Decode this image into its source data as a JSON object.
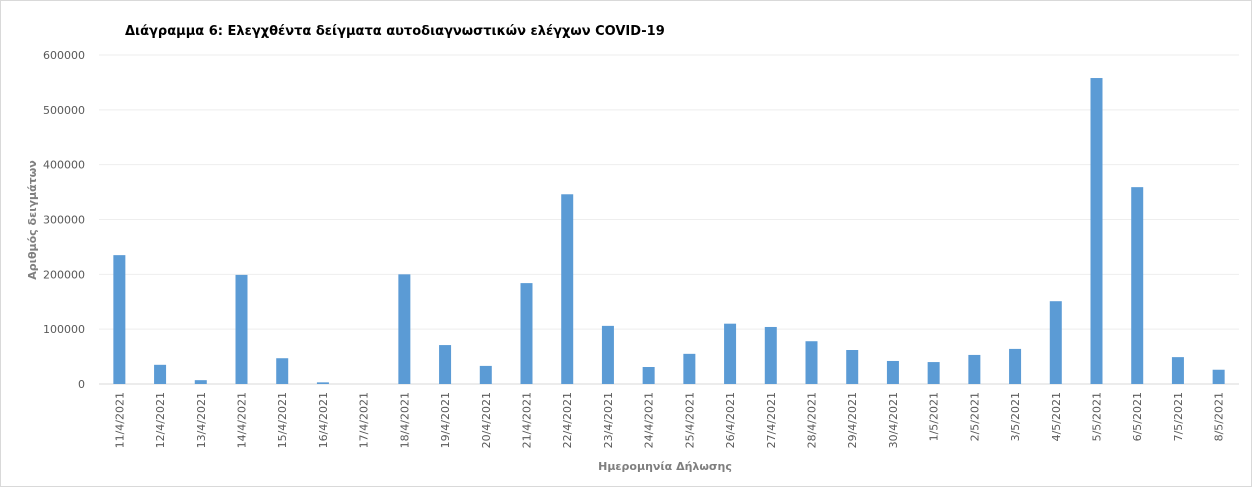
{
  "chart_data": {
    "type": "bar",
    "title": "Διάγραμμα 6: Ελεγχθέντα δείγματα αυτοδιαγνωστικών ελέγχων COVID-19",
    "x_label": "Ημερομηνία Δήλωσης",
    "y_label": "Αριθμός δειγμάτων",
    "categories": [
      "11/4/2021",
      "12/4/2021",
      "13/4/2021",
      "14/4/2021",
      "15/4/2021",
      "16/4/2021",
      "17/4/2021",
      "18/4/2021",
      "19/4/2021",
      "20/4/2021",
      "21/4/2021",
      "22/4/2021",
      "23/4/2021",
      "24/4/2021",
      "25/4/2021",
      "26/4/2021",
      "27/4/2021",
      "28/4/2021",
      "29/4/2021",
      "30/4/2021",
      "1/5/2021",
      "2/5/2021",
      "3/5/2021",
      "4/5/2021",
      "5/5/2021",
      "6/5/2021",
      "7/5/2021",
      "8/5/2021"
    ],
    "values": [
      235000,
      35000,
      7000,
      199000,
      47000,
      3000,
      0,
      200000,
      71000,
      33000,
      184000,
      346000,
      106000,
      31000,
      55000,
      110000,
      104000,
      78000,
      62000,
      42000,
      40000,
      53000,
      64000,
      151000,
      558000,
      359000,
      49000,
      26000
    ],
    "color": "#5b9bd5",
    "ylim": [
      0,
      600000
    ],
    "yticks": [
      0,
      100000,
      200000,
      300000,
      400000,
      500000,
      600000
    ],
    "grid": true
  }
}
